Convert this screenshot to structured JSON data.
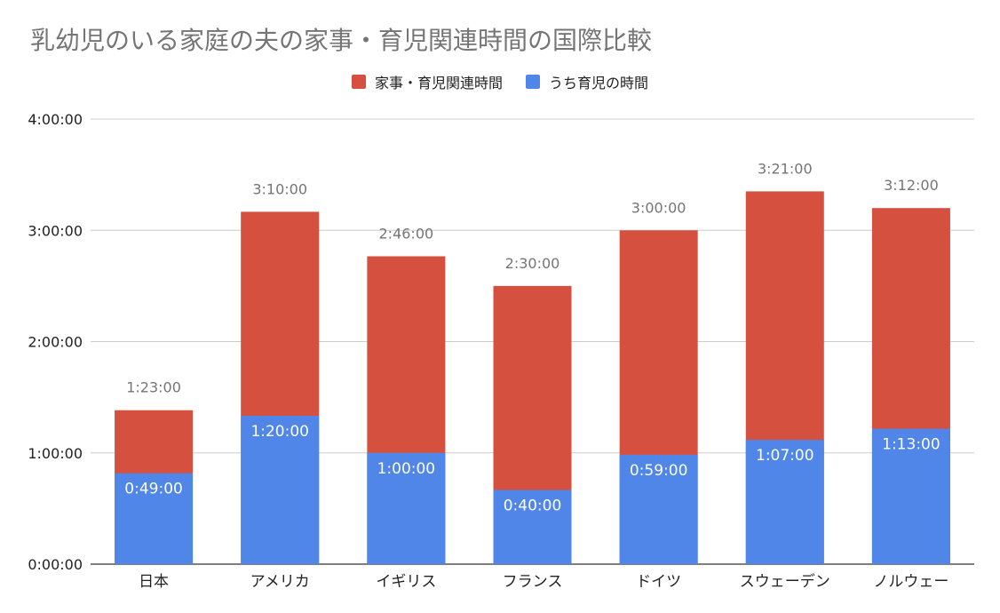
{
  "chart_data": {
    "type": "bar",
    "stacked": true,
    "title": "乳幼児のいる家庭の夫の家事・育児関連時間の国際比較",
    "xlabel": "",
    "ylabel": "",
    "categories": [
      "日本",
      "アメリカ",
      "イギリス",
      "フランス",
      "ドイツ",
      "スウェーデン",
      "ノルウェー"
    ],
    "series": [
      {
        "name": "家事・育児関連時間",
        "color": "#d65040",
        "values": [
          83,
          190,
          166,
          150,
          180,
          201,
          192
        ],
        "labels": [
          "1:23:00",
          "3:10:00",
          "2:46:00",
          "2:30:00",
          "3:00:00",
          "3:21:00",
          "3:12:00"
        ]
      },
      {
        "name": "うち育児の時間",
        "color": "#4f86e8",
        "values": [
          49,
          80,
          60,
          40,
          59,
          67,
          73
        ],
        "labels": [
          "0:49:00",
          "1:20:00",
          "1:00:00",
          "0:40:00",
          "0:59:00",
          "1:07:00",
          "1:13:00"
        ]
      }
    ],
    "ylim": [
      0,
      240
    ],
    "yticks": [
      0,
      60,
      120,
      180,
      240
    ],
    "ytick_labels": [
      "0:00:00",
      "1:00:00",
      "2:00:00",
      "3:00:00",
      "4:00:00"
    ],
    "grid": true,
    "legend": "top"
  }
}
